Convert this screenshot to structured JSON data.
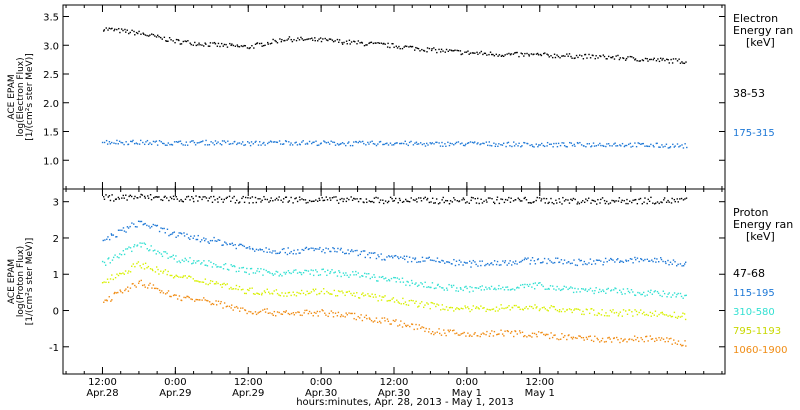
{
  "chart_data": [
    {
      "type": "scatter",
      "panel": "electron",
      "ylabel_lines": [
        "ACE EPAM",
        "log(Electron Flux)",
        "[1/(cm²s ster MeV)]"
      ],
      "ylim": [
        0.5,
        3.7
      ],
      "yticks": [
        1.0,
        1.5,
        2.0,
        2.5,
        3.0,
        3.5
      ],
      "ytick_labels": [
        "1.0",
        "1.5",
        "2.0",
        "2.5",
        "3.0",
        "3.5"
      ],
      "legend_title_lines": [
        "Electron",
        "Energy ran",
        "[keV]"
      ],
      "series": [
        {
          "name": "38-53",
          "color": "#000000",
          "x": [
            0,
            6,
            12,
            18,
            24,
            30,
            36,
            42,
            48,
            54,
            60,
            66,
            72,
            78,
            84,
            90,
            96
          ],
          "y": [
            3.3,
            3.22,
            3.08,
            3.02,
            2.98,
            3.12,
            3.1,
            3.05,
            3.0,
            2.93,
            2.88,
            2.85,
            2.84,
            2.82,
            2.8,
            2.76,
            2.73
          ]
        },
        {
          "name": "175-315",
          "color": "#1e78d6",
          "x": [
            0,
            6,
            12,
            18,
            24,
            30,
            36,
            42,
            48,
            54,
            60,
            66,
            72,
            78,
            84,
            90,
            96
          ],
          "y": [
            1.33,
            1.32,
            1.31,
            1.32,
            1.3,
            1.32,
            1.31,
            1.3,
            1.31,
            1.29,
            1.3,
            1.29,
            1.28,
            1.28,
            1.29,
            1.27,
            1.26
          ]
        }
      ]
    },
    {
      "type": "scatter",
      "panel": "proton",
      "ylabel_lines": [
        "ACE EPAM",
        "log(Proton Flux)",
        "[1/(cm²s ster MeV)]"
      ],
      "ylim": [
        -1.75,
        3.35
      ],
      "yticks": [
        -1,
        0,
        1,
        2,
        3
      ],
      "ytick_labels": [
        "-1",
        "0",
        "1",
        "2",
        "3"
      ],
      "legend_title_lines": [
        "Proton",
        "Energy ran",
        "[keV]"
      ],
      "series": [
        {
          "name": "47-68",
          "color": "#000000",
          "x": [
            0,
            6,
            12,
            18,
            24,
            30,
            36,
            42,
            48,
            54,
            60,
            66,
            72,
            78,
            84,
            90,
            96
          ],
          "y": [
            3.12,
            3.15,
            3.1,
            3.08,
            3.07,
            3.08,
            3.07,
            3.06,
            3.06,
            3.05,
            3.05,
            3.06,
            3.05,
            3.04,
            3.04,
            3.05,
            3.04
          ]
        },
        {
          "name": "115-195",
          "color": "#1e78d6",
          "x": [
            0,
            6,
            12,
            18,
            24,
            30,
            36,
            42,
            48,
            54,
            60,
            66,
            72,
            78,
            84,
            90,
            96
          ],
          "y": [
            1.95,
            2.45,
            2.1,
            1.95,
            1.75,
            1.65,
            1.7,
            1.6,
            1.45,
            1.4,
            1.3,
            1.35,
            1.4,
            1.35,
            1.38,
            1.42,
            1.3
          ]
        },
        {
          "name": "310-580",
          "color": "#33e0d2",
          "x": [
            0,
            6,
            12,
            18,
            24,
            30,
            36,
            42,
            48,
            54,
            60,
            66,
            72,
            78,
            84,
            90,
            96
          ],
          "y": [
            1.3,
            1.85,
            1.45,
            1.3,
            1.1,
            1.05,
            1.08,
            1.0,
            0.85,
            0.7,
            0.6,
            0.65,
            0.7,
            0.6,
            0.55,
            0.5,
            0.4
          ]
        },
        {
          "name": "795-1193",
          "color": "#d8f000",
          "x": [
            0,
            6,
            12,
            18,
            24,
            30,
            36,
            42,
            48,
            54,
            60,
            66,
            72,
            78,
            84,
            90,
            96
          ],
          "y": [
            0.8,
            1.3,
            0.95,
            0.8,
            0.55,
            0.5,
            0.55,
            0.45,
            0.3,
            0.15,
            0.05,
            0.1,
            0.1,
            0.0,
            -0.05,
            -0.05,
            -0.15
          ]
        },
        {
          "name": "1060-1900",
          "color": "#f08c14",
          "x": [
            0,
            6,
            12,
            18,
            24,
            30,
            36,
            42,
            48,
            54,
            60,
            66,
            72,
            78,
            84,
            90,
            96
          ],
          "y": [
            0.25,
            0.8,
            0.4,
            0.25,
            0.0,
            -0.05,
            -0.05,
            -0.15,
            -0.3,
            -0.55,
            -0.65,
            -0.6,
            -0.65,
            -0.75,
            -0.8,
            -0.75,
            -0.9
          ]
        }
      ]
    }
  ],
  "x_axis": {
    "xlim": [
      -6.5,
      102.5
    ],
    "ticks": [
      {
        "x": 0,
        "time": "12:00",
        "date": "Apr.28"
      },
      {
        "x": 12,
        "time": "0:00",
        "date": "Apr.29"
      },
      {
        "x": 24,
        "time": "12:00",
        "date": "Apr.29"
      },
      {
        "x": 36,
        "time": "0:00",
        "date": "Apr.30"
      },
      {
        "x": 48,
        "time": "12:00",
        "date": "Apr.30"
      },
      {
        "x": 60,
        "time": "0:00",
        "date": "May 1"
      },
      {
        "x": 72,
        "time": "12:00",
        "date": "May 1"
      }
    ],
    "label": "hours:minutes, Apr. 28, 2013 - May 1, 2013"
  }
}
